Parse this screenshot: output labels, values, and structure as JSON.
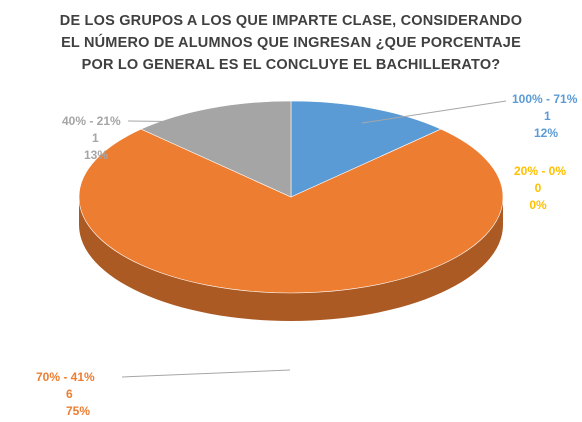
{
  "chart_data": {
    "type": "pie",
    "title_lines": [
      "DE LOS GRUPOS A LOS QUE IMPARTE CLASE, CONSIDERANDO",
      "EL NÚMERO DE ALUMNOS QUE INGRESAN ¿QUE PORCENTAJE",
      "POR LO GENERAL ES EL CONCLUYE EL BACHILLERATO?"
    ],
    "slices": [
      {
        "category": "100% - 71%",
        "count": "1",
        "percent": "12%",
        "value": 1,
        "color": "#5B9BD5"
      },
      {
        "category": "20% - 0%",
        "count": "0",
        "percent": "0%",
        "value": 0,
        "color": "#FFC000"
      },
      {
        "category": "70% - 41%",
        "count": "6",
        "percent": "75%",
        "value": 6,
        "color": "#ED7D31"
      },
      {
        "category": "40% - 21%",
        "count": "1",
        "percent": "13%",
        "value": 1,
        "color": "#A5A5A5"
      }
    ],
    "style": "3d-pie",
    "legend": "none",
    "data_labels": "category, value, percentage"
  }
}
